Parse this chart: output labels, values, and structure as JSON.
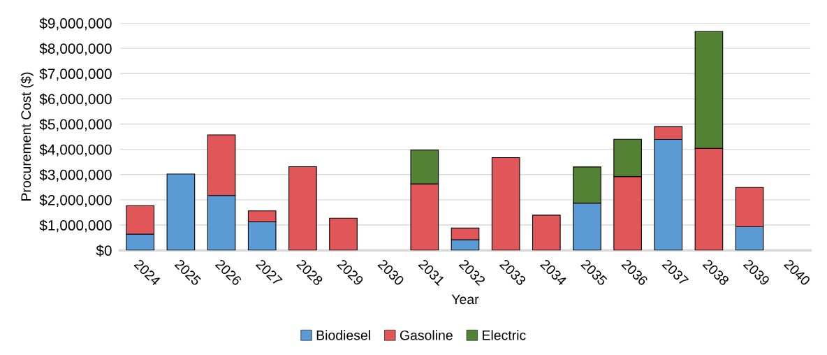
{
  "chart_data": {
    "type": "bar",
    "stacked": true,
    "xlabel": "Year",
    "ylabel": "Procurement Cost ($)",
    "categories": [
      "2024",
      "2025",
      "2026",
      "2027",
      "2028",
      "2029",
      "2030",
      "2031",
      "2032",
      "2033",
      "2034",
      "2035",
      "2036",
      "2037",
      "2038",
      "2039",
      "2040"
    ],
    "series": [
      {
        "name": "Biodiesel",
        "color": "#5b9bd5",
        "values": [
          640000,
          3020000,
          2170000,
          1130000,
          null,
          null,
          null,
          null,
          420000,
          null,
          null,
          1870000,
          null,
          4390000,
          null,
          930000,
          null
        ]
      },
      {
        "name": "Gasoline",
        "color": "#e15759",
        "values": [
          1130000,
          null,
          2400000,
          430000,
          3310000,
          1270000,
          null,
          2630000,
          460000,
          3670000,
          1390000,
          null,
          2920000,
          510000,
          4040000,
          1560000,
          null
        ]
      },
      {
        "name": "Electric",
        "color": "#548235",
        "values": [
          null,
          null,
          null,
          null,
          null,
          null,
          null,
          1340000,
          null,
          null,
          null,
          1430000,
          1480000,
          null,
          4630000,
          null,
          null
        ]
      }
    ],
    "ylim": [
      0,
      9000000
    ],
    "yticks": [
      {
        "value": 0,
        "label": "$0"
      },
      {
        "value": 1000000,
        "label": "$1,000,000"
      },
      {
        "value": 2000000,
        "label": "$2,000,000"
      },
      {
        "value": 3000000,
        "label": "$3,000,000"
      },
      {
        "value": 4000000,
        "label": "$4,000,000"
      },
      {
        "value": 5000000,
        "label": "$5,000,000"
      },
      {
        "value": 6000000,
        "label": "$6,000,000"
      },
      {
        "value": 7000000,
        "label": "$7,000,000"
      },
      {
        "value": 8000000,
        "label": "$8,000,000"
      },
      {
        "value": 9000000,
        "label": "$9,000,000"
      }
    ],
    "grid": "y",
    "legend": "bottom"
  }
}
